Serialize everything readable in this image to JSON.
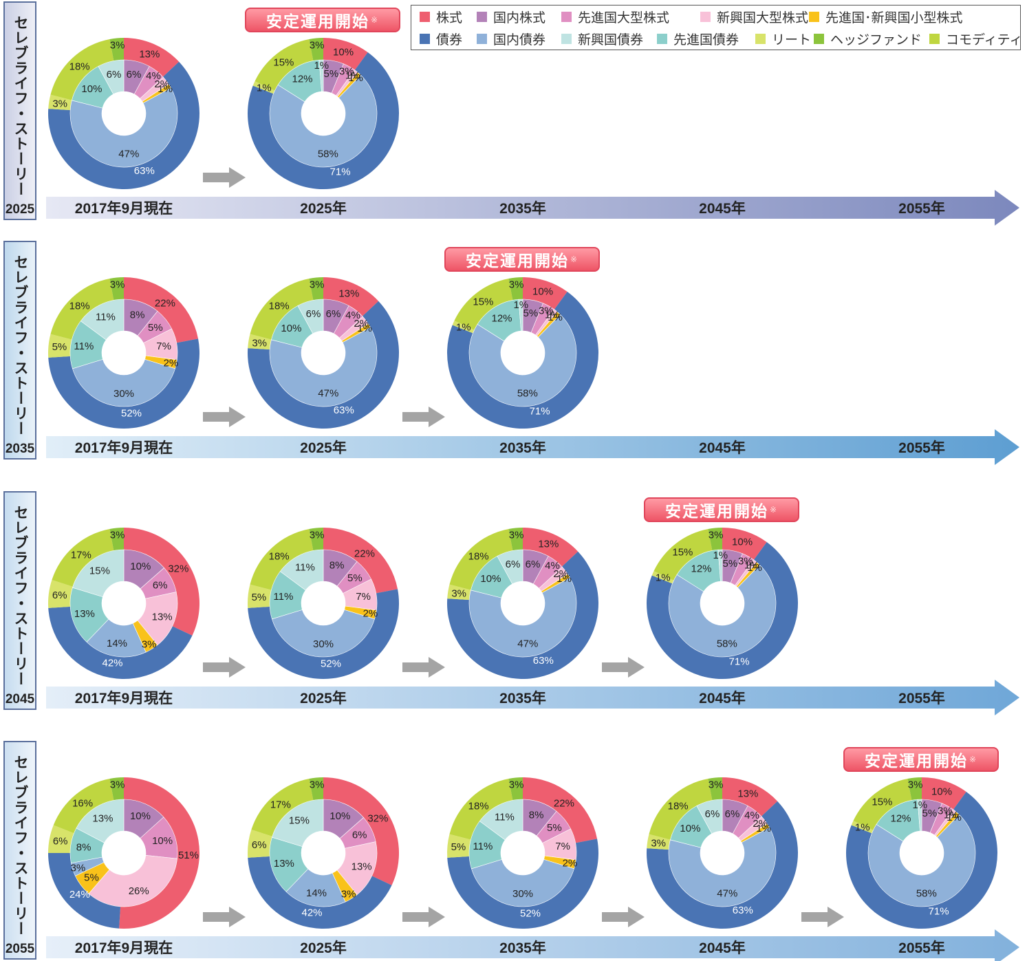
{
  "legend": [
    {
      "key": "stock",
      "label": "株式",
      "color": "#ee5e6f"
    },
    {
      "key": "dom_stock",
      "label": "国内株式",
      "color": "#b382b8"
    },
    {
      "key": "dev_large",
      "label": "先進国大型株式",
      "color": "#e08fc2"
    },
    {
      "key": "em_large",
      "label": "新興国大型株式",
      "color": "#f8c1d8"
    },
    {
      "key": "small",
      "label": "先進国･新興国小型株式",
      "color": "#f9c21a"
    },
    {
      "key": "bond",
      "label": "債券",
      "color": "#4a74b4"
    },
    {
      "key": "dom_bond",
      "label": "国内債券",
      "color": "#8fb1d9"
    },
    {
      "key": "em_bond",
      "label": "新興国債券",
      "color": "#bfe3e2"
    },
    {
      "key": "dev_bond",
      "label": "先進国債券",
      "color": "#8ccfcb"
    },
    {
      "key": "reit",
      "label": "リート",
      "color": "#d8e36a"
    },
    {
      "key": "hedge",
      "label": "ヘッジファンド",
      "color": "#8cc43c"
    },
    {
      "key": "commodity",
      "label": "コモディティ",
      "color": "#bfd640"
    }
  ],
  "timeline_labels": [
    "2017年9月現在",
    "2025年",
    "2035年",
    "2045年",
    "2055年"
  ],
  "badge_text": "安定運用開始",
  "badge_mark": "※",
  "fund_name": "セレブライフ・ストーリー",
  "rows": [
    {
      "fund_year": "2025",
      "band_color": "#7c88bd",
      "band_start": "#e6e8f4",
      "stages": [
        4,
        5
      ]
    },
    {
      "fund_year": "2035",
      "band_color": "#5d9ed2",
      "band_start": "#e1eef8",
      "stages": [
        3,
        4,
        5
      ]
    },
    {
      "fund_year": "2045",
      "band_color": "#6fa7d8",
      "band_start": "#e4eef8",
      "stages": [
        2,
        3,
        4,
        5
      ]
    },
    {
      "fund_year": "2055",
      "band_color": "#82b1dc",
      "band_start": "#e6eff9",
      "stages": [
        1,
        2,
        3,
        4,
        5
      ]
    }
  ],
  "chart_data": {
    "type": "pie",
    "note_structure": "nested donut: inner ring = sub-asset detail, outer ring = asset class",
    "stages": {
      "1": {
        "outer": {
          "stock": 51,
          "bond": 24,
          "reit": 6,
          "hedge": 3,
          "commodity": 16
        },
        "inner": {
          "dom_stock": 10,
          "dev_large": 10,
          "em_large": 26,
          "small": 5,
          "dom_bond": 3,
          "dev_bond": 8,
          "em_bond": 13
        },
        "outer_labels": {
          "stock": "51%",
          "bond": "24%",
          "reit": "6%",
          "hedge": "3%",
          "commodity": "16%"
        },
        "inner_labels": {
          "dom_stock": "10%",
          "dev_large": "10%",
          "em_large": "26%",
          "small": "5%",
          "dom_bond": "3%",
          "dev_bond": "8%",
          "em_bond": "13%"
        }
      },
      "2": {
        "outer": {
          "stock": 32,
          "bond": 42,
          "reit": 6,
          "hedge": 3,
          "commodity": 17
        },
        "inner": {
          "dom_stock": 10,
          "dev_large": 6,
          "em_large": 13,
          "small": 3,
          "dom_bond": 14,
          "dev_bond": 13,
          "em_bond": 15
        },
        "outer_labels": {
          "stock": "32%",
          "bond": "42%",
          "reit": "6%",
          "hedge": "3%",
          "commodity": "17%"
        },
        "inner_labels": {
          "dom_stock": "10%",
          "dev_large": "6%",
          "em_large": "13%",
          "small": "3%",
          "dom_bond": "14%",
          "dev_bond": "13%",
          "em_bond": "15%"
        }
      },
      "3": {
        "outer": {
          "stock": 22,
          "bond": 52,
          "reit": 5,
          "hedge": 3,
          "commodity": 18
        },
        "inner": {
          "dom_stock": 8,
          "dev_large": 5,
          "em_large": 7,
          "small": 2,
          "dom_bond": 30,
          "dev_bond": 11,
          "em_bond": 11
        },
        "outer_labels": {
          "stock": "22%",
          "bond": "52%",
          "reit": "5%",
          "hedge": "3%",
          "commodity": "18%"
        },
        "inner_labels": {
          "dom_stock": "8%",
          "dev_large": "5%",
          "em_large": "7%",
          "small": "2%",
          "dom_bond": "30%",
          "dev_bond": "11%",
          "em_bond": "11%"
        }
      },
      "4": {
        "outer": {
          "stock": 13,
          "bond": 63,
          "reit": 3,
          "hedge": 3,
          "commodity": 18
        },
        "inner": {
          "dom_stock": 6,
          "dev_large": 4,
          "em_large": 2,
          "small": 1,
          "dom_bond": 47,
          "dev_bond": 10,
          "em_bond": 6
        },
        "outer_labels": {
          "stock": "13%",
          "bond": "63%",
          "reit": "3%",
          "hedge": "3%",
          "commodity": "18%"
        },
        "inner_labels": {
          "dom_stock": "6%",
          "dev_large": "4%",
          "em_large": "2%",
          "small": "1%",
          "dom_bond": "47%",
          "dev_bond": "10%",
          "em_bond": "6%"
        }
      },
      "5": {
        "outer": {
          "stock": 10,
          "bond": 71,
          "reit": 1,
          "hedge": 3,
          "commodity": 15
        },
        "inner": {
          "dom_stock": 5,
          "dev_large": 3,
          "em_large": 1,
          "small": 1,
          "dom_bond": 58,
          "dev_bond": 12,
          "em_bond": 1
        },
        "outer_labels": {
          "stock": "10%",
          "bond": "71%",
          "reit": "1%",
          "hedge": "3%",
          "commodity": "15%"
        },
        "inner_labels": {
          "dom_stock": "5%",
          "dev_large": "3%",
          "em_large": "1%",
          "small": "1%",
          "dom_bond": "58%",
          "dev_bond": "12%",
          "em_bond": "1%"
        }
      }
    }
  }
}
